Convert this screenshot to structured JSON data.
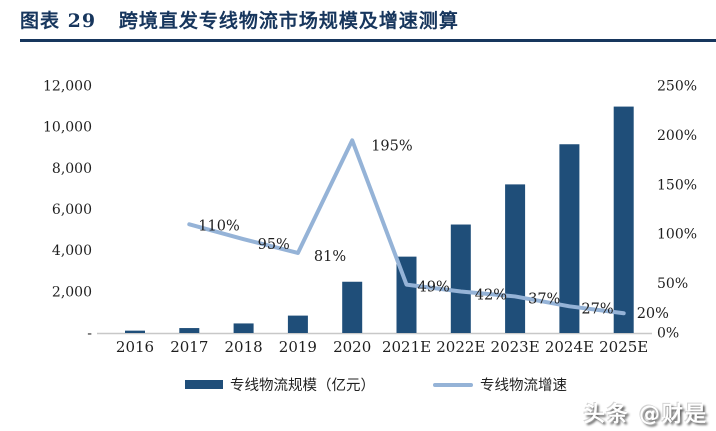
{
  "header": {
    "title": "图表 29   跨境直发专线物流市场规模及增速测算"
  },
  "legend": {
    "bar_label": "专线物流规模（亿元）",
    "line_label": "专线物流增速"
  },
  "watermark": {
    "text": "头条 @财是"
  },
  "colors": {
    "bar": "#1F4E79",
    "line": "#95B3D7",
    "title_text": "#17365D",
    "axis_text": "#1f1f1f",
    "axis_line": "#c8c8c8"
  },
  "chart_data": {
    "type": "bar+line combo",
    "title": "跨境直发专线物流市场规模及增速测算",
    "categories": [
      "2016",
      "2017",
      "2018",
      "2019",
      "2020",
      "2021E",
      "2022E",
      "2023E",
      "2024E",
      "2025E"
    ],
    "series": [
      {
        "name": "专线物流规模（亿元）",
        "type": "bar",
        "axis": "left",
        "values": [
          115,
          240,
          465,
          845,
          2490,
          3710,
          5270,
          7220,
          9170,
          11000
        ]
      },
      {
        "name": "专线物流增速",
        "type": "line",
        "axis": "right",
        "values": [
          null,
          110,
          95,
          81,
          195,
          49,
          42,
          37,
          27,
          20
        ],
        "labels": [
          null,
          "110%",
          "95%",
          "81%",
          "195%",
          "49%",
          "42%",
          "37%",
          "27%",
          "20%"
        ]
      }
    ],
    "left_axis": {
      "min": 0,
      "max": 12000,
      "step": 2000,
      "labels": [
        "-",
        "2,000",
        "4,000",
        "6,000",
        "8,000",
        "10,000",
        "12,000"
      ]
    },
    "right_axis": {
      "min": 0,
      "max": 250,
      "step": 50,
      "labels": [
        "0%",
        "50%",
        "100%",
        "150%",
        "200%",
        "250%"
      ]
    },
    "grid": false,
    "legend_position": "bottom"
  }
}
